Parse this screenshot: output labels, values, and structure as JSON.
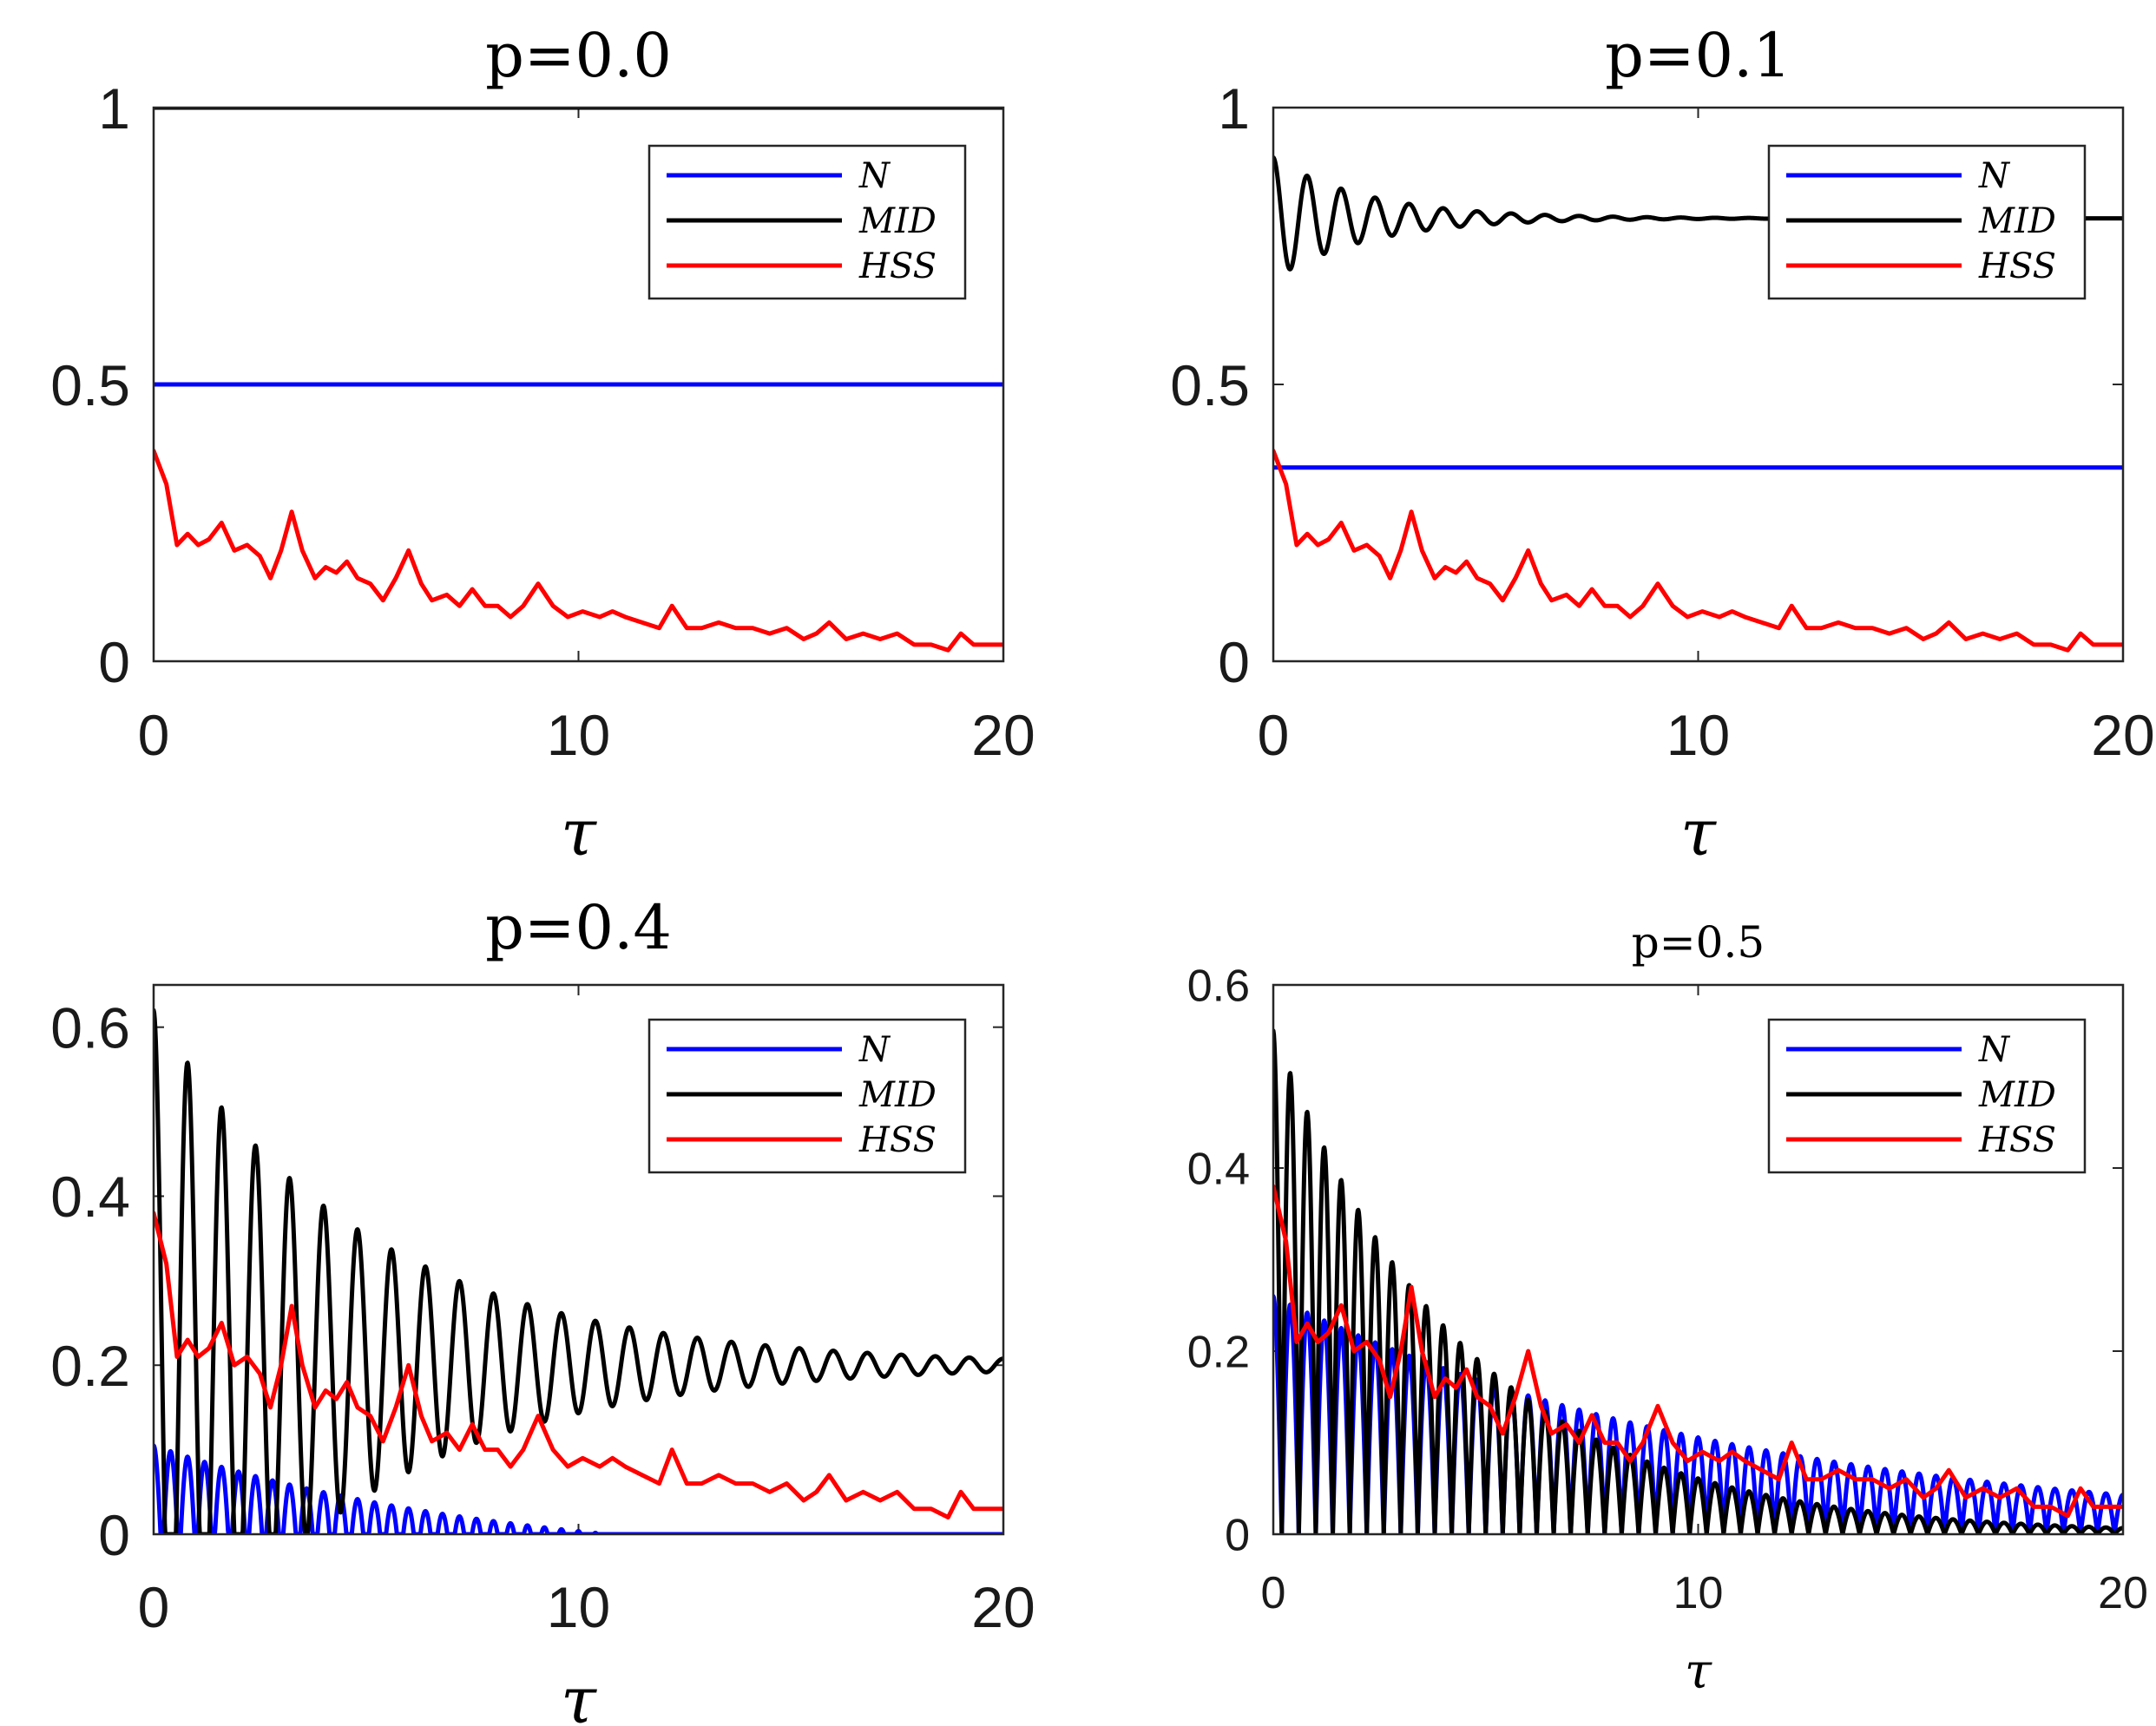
{
  "chart_data": [
    {
      "type": "line",
      "title": "p=0.0",
      "xlabel": "τ",
      "ylabel": "",
      "xlim": [
        0,
        20
      ],
      "ylim": [
        0,
        1
      ],
      "xticks": [
        "0",
        "10",
        "20"
      ],
      "yticks": [
        "0",
        "0.5",
        "1"
      ],
      "legend_position": "top-right",
      "legend": [
        "N",
        "MID",
        "HSS"
      ],
      "series": [
        {
          "name": "N",
          "color": "#0000ff",
          "x": [
            0,
            20
          ],
          "y": [
            0.5,
            0.5
          ]
        },
        {
          "name": "MID",
          "color": "#000000",
          "x": [
            0,
            20
          ],
          "y": [
            1.0,
            1.0
          ]
        },
        {
          "name": "HSS",
          "color": "#ff0000",
          "x": [
            0,
            0.3,
            0.55,
            0.8,
            1.05,
            1.3,
            1.6,
            1.9,
            2.2,
            2.5,
            2.75,
            3.0,
            3.25,
            3.5,
            3.8,
            4.05,
            4.3,
            4.55,
            4.8,
            5.1,
            5.4,
            5.7,
            6.0,
            6.3,
            6.55,
            6.9,
            7.2,
            7.5,
            7.8,
            8.1,
            8.4,
            8.7,
            9.05,
            9.4,
            9.75,
            10.1,
            10.5,
            10.8,
            11.1,
            11.5,
            11.9,
            12.2,
            12.55,
            12.9,
            13.3,
            13.7,
            14.1,
            14.5,
            14.9,
            15.3,
            15.6,
            15.9,
            16.3,
            16.7,
            17.1,
            17.5,
            17.9,
            18.3,
            18.7,
            19.0,
            19.3,
            19.6,
            20.0
          ],
          "y": [
            0.38,
            0.32,
            0.21,
            0.23,
            0.21,
            0.22,
            0.25,
            0.2,
            0.21,
            0.19,
            0.15,
            0.2,
            0.27,
            0.2,
            0.15,
            0.17,
            0.16,
            0.18,
            0.15,
            0.14,
            0.11,
            0.15,
            0.2,
            0.14,
            0.11,
            0.12,
            0.1,
            0.13,
            0.1,
            0.1,
            0.08,
            0.1,
            0.14,
            0.1,
            0.08,
            0.09,
            0.08,
            0.09,
            0.08,
            0.07,
            0.06,
            0.1,
            0.06,
            0.06,
            0.07,
            0.06,
            0.06,
            0.05,
            0.06,
            0.04,
            0.05,
            0.07,
            0.04,
            0.05,
            0.04,
            0.05,
            0.03,
            0.03,
            0.02,
            0.05,
            0.03,
            0.03,
            0.03
          ]
        }
      ]
    },
    {
      "type": "line",
      "title": "p=0.1",
      "xlabel": "τ",
      "ylabel": "",
      "xlim": [
        0,
        20
      ],
      "ylim": [
        0,
        1
      ],
      "xticks": [
        "0",
        "10",
        "20"
      ],
      "yticks": [
        "0",
        "0.5",
        "1"
      ],
      "legend_position": "top-right",
      "legend": [
        "N",
        "MID",
        "HSS"
      ],
      "series": [
        {
          "name": "N",
          "color": "#0000ff",
          "x": [
            0,
            20
          ],
          "y": [
            0.35,
            0.35
          ]
        },
        {
          "name": "MID",
          "color": "#000000",
          "func": "damped-oscillation",
          "base": 0.8,
          "amp": 0.11,
          "decay": 0.45,
          "period": 0.8,
          "phase": 0,
          "rectify": false,
          "x_end": 20
        },
        {
          "name": "HSS",
          "color": "#ff0000",
          "x": [
            0,
            0.3,
            0.55,
            0.8,
            1.05,
            1.3,
            1.6,
            1.9,
            2.2,
            2.5,
            2.75,
            3.0,
            3.25,
            3.5,
            3.8,
            4.05,
            4.3,
            4.55,
            4.8,
            5.1,
            5.4,
            5.7,
            6.0,
            6.3,
            6.55,
            6.9,
            7.2,
            7.5,
            7.8,
            8.1,
            8.4,
            8.7,
            9.05,
            9.4,
            9.75,
            10.1,
            10.5,
            10.8,
            11.1,
            11.5,
            11.9,
            12.2,
            12.55,
            12.9,
            13.3,
            13.7,
            14.1,
            14.5,
            14.9,
            15.3,
            15.6,
            15.9,
            16.3,
            16.7,
            17.1,
            17.5,
            17.9,
            18.3,
            18.7,
            19.0,
            19.3,
            19.6,
            20.0
          ],
          "y": [
            0.38,
            0.32,
            0.21,
            0.23,
            0.21,
            0.22,
            0.25,
            0.2,
            0.21,
            0.19,
            0.15,
            0.2,
            0.27,
            0.2,
            0.15,
            0.17,
            0.16,
            0.18,
            0.15,
            0.14,
            0.11,
            0.15,
            0.2,
            0.14,
            0.11,
            0.12,
            0.1,
            0.13,
            0.1,
            0.1,
            0.08,
            0.1,
            0.14,
            0.1,
            0.08,
            0.09,
            0.08,
            0.09,
            0.08,
            0.07,
            0.06,
            0.1,
            0.06,
            0.06,
            0.07,
            0.06,
            0.06,
            0.05,
            0.06,
            0.04,
            0.05,
            0.07,
            0.04,
            0.05,
            0.04,
            0.05,
            0.03,
            0.03,
            0.02,
            0.05,
            0.03,
            0.03,
            0.03
          ]
        }
      ]
    },
    {
      "type": "line",
      "title": "p=0.4",
      "xlabel": "τ",
      "ylabel": "",
      "xlim": [
        0,
        20
      ],
      "ylim": [
        0,
        0.65
      ],
      "xticks": [
        "0",
        "10",
        "20"
      ],
      "yticks": [
        "0",
        "0.2",
        "0.4",
        "0.6"
      ],
      "legend_position": "top-right",
      "legend": [
        "N",
        "MID",
        "HSS"
      ],
      "series": [
        {
          "name": "N",
          "color": "#0000ff",
          "func": "damped-oscillation",
          "base": -0.04,
          "amp": 0.145,
          "decay": 0.12,
          "period": 0.8,
          "phase": 0,
          "rectify": true,
          "x_end": 20
        },
        {
          "name": "MID",
          "color": "#000000",
          "func": "damped-oscillation",
          "base": 0.2,
          "amp": 0.42,
          "decay": 0.2,
          "period": 0.8,
          "phase": 0,
          "rectify": false,
          "x_end": 20
        },
        {
          "name": "HSS",
          "color": "#ff0000",
          "x": [
            0,
            0.3,
            0.55,
            0.8,
            1.05,
            1.3,
            1.6,
            1.9,
            2.2,
            2.5,
            2.75,
            3.0,
            3.25,
            3.5,
            3.8,
            4.05,
            4.3,
            4.55,
            4.8,
            5.1,
            5.4,
            5.7,
            6.0,
            6.3,
            6.55,
            6.9,
            7.2,
            7.5,
            7.8,
            8.1,
            8.4,
            8.7,
            9.05,
            9.4,
            9.75,
            10.1,
            10.5,
            10.8,
            11.1,
            11.5,
            11.9,
            12.2,
            12.55,
            12.9,
            13.3,
            13.7,
            14.1,
            14.5,
            14.9,
            15.3,
            15.6,
            15.9,
            16.3,
            16.7,
            17.1,
            17.5,
            17.9,
            18.3,
            18.7,
            19.0,
            19.3,
            19.6,
            20.0
          ],
          "y": [
            0.38,
            0.32,
            0.21,
            0.23,
            0.21,
            0.22,
            0.25,
            0.2,
            0.21,
            0.19,
            0.15,
            0.2,
            0.27,
            0.2,
            0.15,
            0.17,
            0.16,
            0.18,
            0.15,
            0.14,
            0.11,
            0.15,
            0.2,
            0.14,
            0.11,
            0.12,
            0.1,
            0.13,
            0.1,
            0.1,
            0.08,
            0.1,
            0.14,
            0.1,
            0.08,
            0.09,
            0.08,
            0.09,
            0.08,
            0.07,
            0.06,
            0.1,
            0.06,
            0.06,
            0.07,
            0.06,
            0.06,
            0.05,
            0.06,
            0.04,
            0.05,
            0.07,
            0.04,
            0.05,
            0.04,
            0.05,
            0.03,
            0.03,
            0.02,
            0.05,
            0.03,
            0.03,
            0.03
          ]
        }
      ]
    },
    {
      "type": "line",
      "title": "p=0.5",
      "xlabel": "τ",
      "ylabel": "",
      "xlim": [
        0,
        20
      ],
      "ylim": [
        0,
        0.6
      ],
      "xticks": [
        "0",
        "10",
        "20"
      ],
      "yticks": [
        "0",
        "0.2",
        "0.4",
        "0.6"
      ],
      "legend_position": "top-right",
      "legend": [
        "N",
        "MID",
        "HSS"
      ],
      "series": [
        {
          "name": "N",
          "color": "#0000ff",
          "func": "damped-oscillation",
          "base": 0,
          "amp": 0.26,
          "decay": 0.09,
          "period": 0.8,
          "phase": 0,
          "rectify": true,
          "x_end": 20
        },
        {
          "name": "MID",
          "color": "#000000",
          "func": "damped-oscillation",
          "base": 0,
          "amp": 0.55,
          "decay": 0.22,
          "period": 0.8,
          "phase": 0,
          "rectify": true,
          "x_end": 20
        },
        {
          "name": "HSS",
          "color": "#ff0000",
          "x": [
            0,
            0.3,
            0.55,
            0.8,
            1.05,
            1.3,
            1.6,
            1.9,
            2.2,
            2.5,
            2.75,
            3.0,
            3.25,
            3.5,
            3.8,
            4.05,
            4.3,
            4.55,
            4.8,
            5.1,
            5.4,
            5.7,
            6.0,
            6.3,
            6.55,
            6.9,
            7.2,
            7.5,
            7.8,
            8.1,
            8.4,
            8.7,
            9.05,
            9.4,
            9.75,
            10.1,
            10.5,
            10.8,
            11.1,
            11.5,
            11.9,
            12.2,
            12.55,
            12.9,
            13.3,
            13.7,
            14.1,
            14.5,
            14.9,
            15.3,
            15.6,
            15.9,
            16.3,
            16.7,
            17.1,
            17.5,
            17.9,
            18.3,
            18.7,
            19.0,
            19.3,
            19.6,
            20.0
          ],
          "y": [
            0.38,
            0.32,
            0.21,
            0.23,
            0.21,
            0.22,
            0.25,
            0.2,
            0.21,
            0.19,
            0.15,
            0.2,
            0.27,
            0.2,
            0.15,
            0.17,
            0.16,
            0.18,
            0.15,
            0.14,
            0.11,
            0.15,
            0.2,
            0.14,
            0.11,
            0.12,
            0.1,
            0.13,
            0.1,
            0.1,
            0.08,
            0.1,
            0.14,
            0.1,
            0.08,
            0.09,
            0.08,
            0.09,
            0.08,
            0.07,
            0.06,
            0.1,
            0.06,
            0.06,
            0.07,
            0.06,
            0.06,
            0.05,
            0.06,
            0.04,
            0.05,
            0.07,
            0.04,
            0.05,
            0.04,
            0.05,
            0.03,
            0.03,
            0.02,
            0.05,
            0.03,
            0.03,
            0.03
          ]
        }
      ]
    }
  ]
}
